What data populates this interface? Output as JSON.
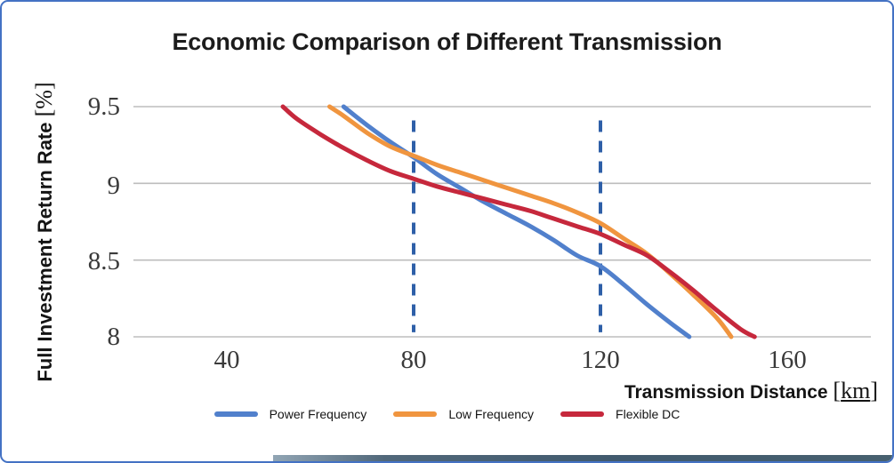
{
  "title": "Economic Comparison of Different Transmission",
  "y_axis": {
    "label": "Full Investment Return Rate",
    "unit_open": "[",
    "unit": "%",
    "unit_close": "]",
    "ticks": [
      "9.5",
      "9",
      "8.5",
      "8"
    ]
  },
  "x_axis": {
    "label": "Transmission Distance",
    "unit_open": "[",
    "unit": "km",
    "unit_close": "]",
    "ticks": [
      "40",
      "80",
      "120",
      "160"
    ]
  },
  "legend": {
    "items": [
      {
        "label": "Power Frequency",
        "color": "#5180cc"
      },
      {
        "label": "Low Frequency",
        "color": "#f0953f"
      },
      {
        "label": "Flexible DC",
        "color": "#c6283c"
      }
    ]
  },
  "colors": {
    "border": "#4472c4",
    "gridline": "#bdbdbd",
    "dashed_reference": "#2e5fa8",
    "title_text": "#1c1c1c",
    "tick_text": "#3a3a3a"
  },
  "chart_data": {
    "type": "line",
    "title": "Economic Comparison of Different Transmission",
    "xlabel": "Transmission Distance [km]",
    "ylabel": "Full Investment Return Rate [%]",
    "xlim": [
      20,
      178
    ],
    "ylim": [
      8,
      9.5
    ],
    "x_ticks": [
      40,
      80,
      120,
      160
    ],
    "y_ticks": [
      9.5,
      9,
      8.5,
      8
    ],
    "grid": "horizontal",
    "legend_position": "bottom",
    "series": [
      {
        "name": "Power Frequency",
        "color": "#5180cc",
        "points": [
          [
            65,
            9.5
          ],
          [
            70,
            9.38
          ],
          [
            75,
            9.27
          ],
          [
            80,
            9.17
          ],
          [
            85,
            9.06
          ],
          [
            90,
            8.97
          ],
          [
            95,
            8.88
          ],
          [
            100,
            8.8
          ],
          [
            105,
            8.72
          ],
          [
            110,
            8.63
          ],
          [
            115,
            8.53
          ],
          [
            120,
            8.46
          ],
          [
            125,
            8.34
          ],
          [
            130,
            8.21
          ],
          [
            135,
            8.09
          ],
          [
            139,
            8.0
          ]
        ]
      },
      {
        "name": "Low Frequency",
        "color": "#f0953f",
        "points": [
          [
            62,
            9.5
          ],
          [
            65,
            9.44
          ],
          [
            70,
            9.33
          ],
          [
            75,
            9.24
          ],
          [
            80,
            9.18
          ],
          [
            85,
            9.12
          ],
          [
            90,
            9.07
          ],
          [
            95,
            9.02
          ],
          [
            100,
            8.97
          ],
          [
            105,
            8.92
          ],
          [
            110,
            8.87
          ],
          [
            115,
            8.81
          ],
          [
            120,
            8.74
          ],
          [
            125,
            8.64
          ],
          [
            130,
            8.54
          ],
          [
            135,
            8.41
          ],
          [
            140,
            8.27
          ],
          [
            145,
            8.12
          ],
          [
            148,
            8.0
          ]
        ]
      },
      {
        "name": "Flexible DC",
        "color": "#c6283c",
        "points": [
          [
            52,
            9.5
          ],
          [
            55,
            9.42
          ],
          [
            60,
            9.32
          ],
          [
            65,
            9.23
          ],
          [
            70,
            9.15
          ],
          [
            75,
            9.08
          ],
          [
            80,
            9.03
          ],
          [
            85,
            8.98
          ],
          [
            90,
            8.94
          ],
          [
            95,
            8.9
          ],
          [
            100,
            8.86
          ],
          [
            105,
            8.82
          ],
          [
            110,
            8.77
          ],
          [
            115,
            8.72
          ],
          [
            120,
            8.67
          ],
          [
            125,
            8.6
          ],
          [
            130,
            8.53
          ],
          [
            135,
            8.42
          ],
          [
            140,
            8.3
          ],
          [
            145,
            8.17
          ],
          [
            150,
            8.05
          ],
          [
            153,
            8.0
          ]
        ]
      }
    ],
    "reference_lines": {
      "style": "dashed",
      "color": "#2e5fa8",
      "vertical": [
        {
          "x": 80,
          "y_span": [
            8.03,
            9.41
          ]
        },
        {
          "x": 120,
          "y_span": [
            8.03,
            9.41
          ]
        }
      ]
    }
  }
}
